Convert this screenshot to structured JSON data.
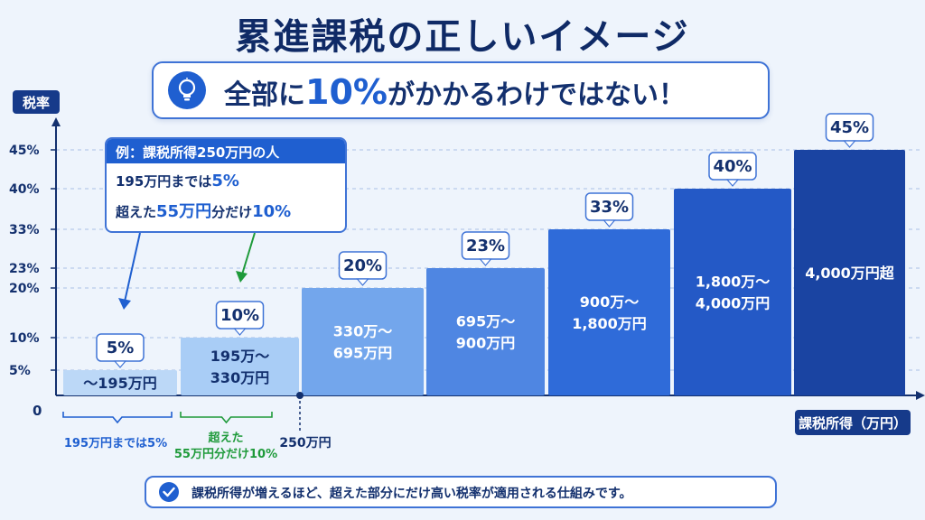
{
  "title": "累進課税の正しいイメージ",
  "banner": {
    "prefix": "全部に",
    "highlight": "10%",
    "suffix": "がかかるわけではない！"
  },
  "callout": {
    "header": "例：課税所得250万円の人",
    "line1_prefix": "195万円までは",
    "line1_rate": "5%",
    "line2_prefix": "超えた",
    "line2_amount": "55万円",
    "line2_mid": "分だけ",
    "line2_rate": "10%"
  },
  "footer": "課税所得が増えるほど、超えた部分にだけ高い税率が適用される仕組みです。",
  "colors": {
    "accent": "#1f5fd0",
    "green": "#1e9a3a",
    "dark": "#0f2a66"
  },
  "chart_data": {
    "type": "bar",
    "ylabel": "税率",
    "xlabel": "課税所得（万円）",
    "zero_label": "0",
    "ytick_values": [
      5,
      10,
      20,
      23,
      33,
      40,
      45
    ],
    "ytick_labels": [
      "5%",
      "10%",
      "20%",
      "23%",
      "33%",
      "40%",
      "45%"
    ],
    "categories": [
      "～195万円",
      "195万～\n330万円",
      "330万～\n695万円",
      "695万～\n900万円",
      "900万～\n1,800万円",
      "1,800万～\n4,000万円",
      "4,000万円超"
    ],
    "values": [
      5,
      10,
      20,
      23,
      33,
      40,
      45
    ],
    "value_labels": [
      "5%",
      "10%",
      "20%",
      "23%",
      "33%",
      "40%",
      "45%"
    ],
    "bar_colors": [
      "#bcd8f7",
      "#a9cdf6",
      "#73a6ec",
      "#4f86e2",
      "#2f6bd9",
      "#2459c6",
      "#1a44a2"
    ],
    "bar_text_colors": [
      "#13306e",
      "#13306e",
      "#ffffff",
      "#ffffff",
      "#ffffff",
      "#ffffff",
      "#ffffff"
    ],
    "brace_labels": [
      {
        "text": "195万円までは5%",
        "color": "#1f5fd0"
      },
      {
        "text": "超えた\n55万円分だけ10%",
        "color": "#1e9a3a"
      }
    ],
    "marker_label": "250万円"
  }
}
